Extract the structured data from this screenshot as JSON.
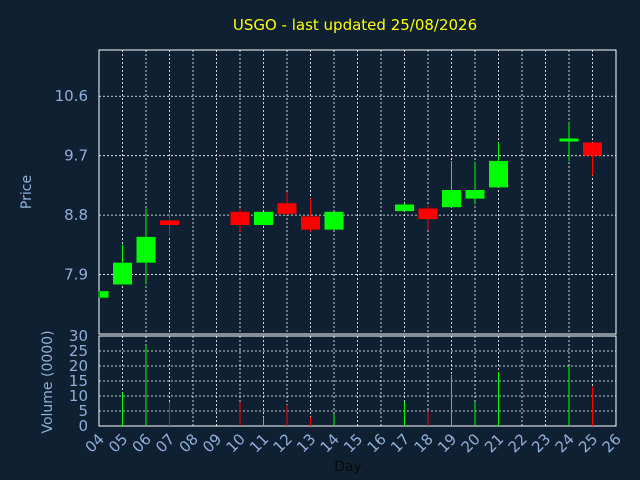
{
  "chart_data": {
    "type": "candlestick",
    "title": "USGO - last updated 25/08/2026",
    "xlabel": "Day",
    "price_ylabel": "Price",
    "volume_ylabel": "Volume (0000)",
    "x_ticks": [
      "04",
      "05",
      "06",
      "07",
      "08",
      "09",
      "10",
      "11",
      "12",
      "13",
      "14",
      "15",
      "16",
      "17",
      "18",
      "19",
      "20",
      "21",
      "22",
      "23",
      "24",
      "25",
      "26"
    ],
    "price_ticks": [
      "7.9",
      "8.8",
      "9.7",
      "10.6"
    ],
    "volume_ticks": [
      "0",
      "5",
      "10",
      "15",
      "20",
      "25",
      "30"
    ],
    "price_ylim": [
      7.0,
      11.3
    ],
    "volume_ylim": [
      0,
      30
    ],
    "candles": [
      {
        "day": 4,
        "open": 7.55,
        "high": 7.65,
        "low": 7.55,
        "close": 7.65,
        "volume": 0
      },
      {
        "day": 5,
        "open": 7.75,
        "high": 8.35,
        "low": 7.75,
        "close": 8.08,
        "volume": 11
      },
      {
        "day": 6,
        "open": 8.08,
        "high": 8.9,
        "low": 7.75,
        "close": 8.47,
        "volume": 27
      },
      {
        "day": 7,
        "open": 8.72,
        "high": 8.85,
        "low": 8.48,
        "close": 8.65,
        "volume": 8
      },
      {
        "day": 10,
        "open": 8.85,
        "high": 8.9,
        "low": 8.55,
        "close": 8.65,
        "volume": 8
      },
      {
        "day": 11,
        "open": 8.65,
        "high": 8.85,
        "low": 8.65,
        "close": 8.85,
        "volume": 3
      },
      {
        "day": 12,
        "open": 8.98,
        "high": 9.15,
        "low": 8.8,
        "close": 8.82,
        "volume": 7
      },
      {
        "day": 13,
        "open": 8.78,
        "high": 9.05,
        "low": 8.55,
        "close": 8.58,
        "volume": 3
      },
      {
        "day": 14,
        "open": 8.58,
        "high": 8.85,
        "low": 8.58,
        "close": 8.85,
        "volume": 4
      },
      {
        "day": 17,
        "open": 8.86,
        "high": 8.98,
        "low": 8.86,
        "close": 8.96,
        "volume": 8
      },
      {
        "day": 18,
        "open": 8.9,
        "high": 8.95,
        "low": 8.58,
        "close": 8.74,
        "volume": 5
      },
      {
        "day": 19,
        "open": 8.92,
        "high": 9.62,
        "low": 8.92,
        "close": 9.18,
        "volume": 17
      },
      {
        "day": 20,
        "open": 9.05,
        "high": 9.6,
        "low": 8.96,
        "close": 9.18,
        "volume": 8
      },
      {
        "day": 21,
        "open": 9.22,
        "high": 9.9,
        "low": 9.22,
        "close": 9.62,
        "volume": 18
      },
      {
        "day": 24,
        "open": 9.93,
        "high": 10.2,
        "low": 9.62,
        "close": 9.96,
        "volume": 20
      },
      {
        "day": 25,
        "open": 9.9,
        "high": 9.9,
        "low": 9.4,
        "close": 9.7,
        "volume": 13
      }
    ],
    "grid": true,
    "colors": {
      "background": "#0f2033",
      "up": "#00ff00",
      "down": "#ff0000",
      "grid": "#ffffff",
      "frame": "#ffffff",
      "title": "#ffff00",
      "ticks": "#8fb0d8"
    }
  }
}
